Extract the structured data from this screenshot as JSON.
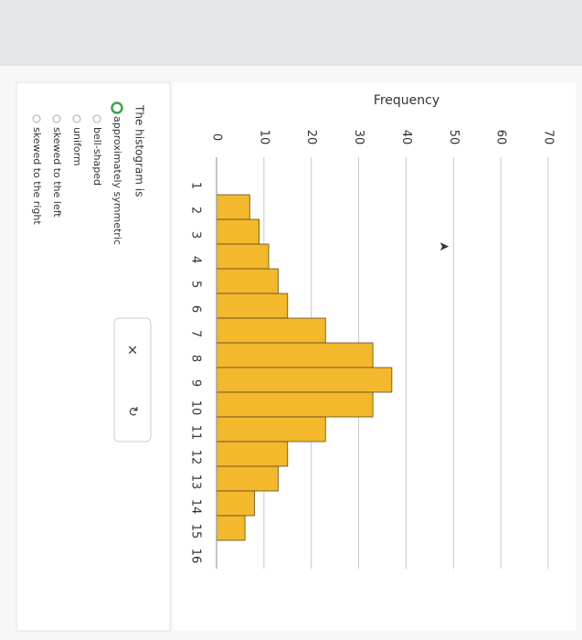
{
  "chart_data": {
    "type": "histogram",
    "ylabel": "Frequency",
    "bins": [
      1,
      2,
      3,
      4,
      5,
      6,
      7,
      8,
      9,
      10,
      11,
      12,
      13,
      14,
      15
    ],
    "counts": [
      7,
      9,
      11,
      13,
      15,
      23,
      33,
      37,
      33,
      23,
      15,
      13,
      8,
      6
    ],
    "color": "#f4b82c",
    "xlim": [
      1,
      16
    ],
    "xticks": [
      1,
      2,
      3,
      4,
      5,
      6,
      7,
      8,
      9,
      10,
      11,
      12,
      13,
      14,
      15,
      16
    ],
    "ylim": [
      0,
      70
    ],
    "yticks": [
      0,
      10,
      20,
      30,
      40,
      50,
      60,
      70
    ],
    "grid": true
  },
  "question": {
    "prompt": "The histogram is",
    "options": [
      "approximately symmetric",
      "bell-shaped",
      "uniform",
      "skewed to the left",
      "skewed to the right"
    ],
    "selected": 0
  }
}
